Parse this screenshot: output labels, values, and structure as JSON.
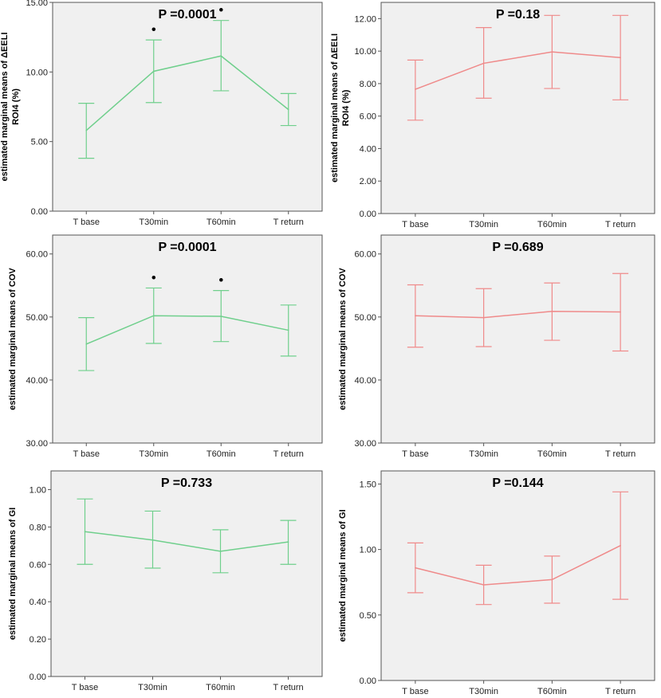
{
  "chart_data": [
    {
      "type": "line",
      "title": "P =0.0001",
      "ylabel": [
        "estimated marginal means of ΔEELI",
        "ROI4 (%)"
      ],
      "categories": [
        "T base",
        "T30min",
        "T60min",
        "T return"
      ],
      "color": "#6fcf8c",
      "ylim": [
        0,
        15
      ],
      "yticks": [
        0,
        5,
        10,
        15
      ],
      "ytick_labels": [
        "0.00",
        "5.00",
        "10.00",
        "15.00"
      ],
      "means": [
        5.8,
        10.05,
        11.15,
        7.3
      ],
      "ci_low": [
        3.8,
        7.8,
        8.65,
        6.15
      ],
      "ci_high": [
        7.75,
        12.3,
        13.7,
        8.45
      ],
      "markers": [
        "",
        "•",
        "•",
        ""
      ]
    },
    {
      "type": "line",
      "title": "P =0.18",
      "ylabel": [
        "estimated marginal means of ΔEELI",
        "ROI4 (%)"
      ],
      "categories": [
        "T base",
        "T30min",
        "T60min",
        "T return"
      ],
      "color": "#ef8a8a",
      "ylim": [
        0,
        13
      ],
      "yticks": [
        0,
        2,
        4,
        6,
        8,
        10,
        12
      ],
      "ytick_labels": [
        "0.00",
        "2.00",
        "4.00",
        "6.00",
        "8.00",
        "10.00",
        "12.00"
      ],
      "means": [
        7.65,
        9.25,
        9.95,
        9.6
      ],
      "ci_low": [
        5.75,
        7.1,
        7.7,
        7.0
      ],
      "ci_high": [
        9.45,
        11.45,
        12.2,
        12.2
      ],
      "markers": [
        "",
        "",
        "",
        ""
      ]
    },
    {
      "type": "line",
      "title": "P =0.0001",
      "ylabel": [
        "estimated marginal means of COV"
      ],
      "categories": [
        "T base",
        "T30min",
        "T60min",
        "T return"
      ],
      "color": "#6fcf8c",
      "ylim": [
        30,
        63
      ],
      "yticks": [
        30,
        40,
        50,
        60
      ],
      "ytick_labels": [
        "30.00",
        "40.00",
        "50.00",
        "60.00"
      ],
      "means": [
        45.7,
        50.2,
        50.1,
        47.9
      ],
      "ci_low": [
        41.5,
        45.8,
        46.1,
        43.8
      ],
      "ci_high": [
        49.9,
        54.6,
        54.2,
        51.9
      ],
      "markers": [
        "",
        "•",
        "•",
        ""
      ]
    },
    {
      "type": "line",
      "title": "P =0.689",
      "ylabel": [
        "estimated marginal means of COV"
      ],
      "categories": [
        "T base",
        "T30min",
        "T60min",
        "T return"
      ],
      "color": "#ef8a8a",
      "ylim": [
        30,
        63
      ],
      "yticks": [
        30,
        40,
        50,
        60
      ],
      "ytick_labels": [
        "30.00",
        "40.00",
        "50.00",
        "60.00"
      ],
      "means": [
        50.2,
        49.9,
        50.9,
        50.8
      ],
      "ci_low": [
        45.2,
        45.3,
        46.3,
        44.6
      ],
      "ci_high": [
        55.1,
        54.5,
        55.4,
        56.9
      ],
      "markers": [
        "",
        "",
        "",
        ""
      ]
    },
    {
      "type": "line",
      "title": "P =0.733",
      "ylabel": [
        "estimated marginal means of GI"
      ],
      "categories": [
        "T base",
        "T30min",
        "T60min",
        "T return"
      ],
      "color": "#6fcf8c",
      "ylim": [
        0,
        1.1
      ],
      "yticks": [
        0,
        0.2,
        0.4,
        0.6,
        0.8,
        1.0
      ],
      "ytick_labels": [
        "0.00",
        "0.20",
        "0.40",
        "0.60",
        "0.80",
        "1.00"
      ],
      "means": [
        0.775,
        0.73,
        0.67,
        0.72
      ],
      "ci_low": [
        0.6,
        0.58,
        0.555,
        0.6
      ],
      "ci_high": [
        0.95,
        0.885,
        0.785,
        0.835
      ],
      "markers": [
        "",
        "",
        "",
        ""
      ]
    },
    {
      "type": "line",
      "title": "P =0.144",
      "ylabel": [
        "estimated marginal means of GI"
      ],
      "categories": [
        "T base",
        "T30min",
        "T60min",
        "T return"
      ],
      "color": "#ef8a8a",
      "ylim": [
        0,
        1.6
      ],
      "yticks": [
        0,
        0.5,
        1.0,
        1.5
      ],
      "ytick_labels": [
        "0.00",
        "0.50",
        "1.00",
        "1.50"
      ],
      "means": [
        0.86,
        0.73,
        0.77,
        1.03
      ],
      "ci_low": [
        0.67,
        0.58,
        0.59,
        0.62
      ],
      "ci_high": [
        1.05,
        0.88,
        0.95,
        1.44
      ],
      "markers": [
        "",
        "",
        "",
        ""
      ]
    }
  ]
}
